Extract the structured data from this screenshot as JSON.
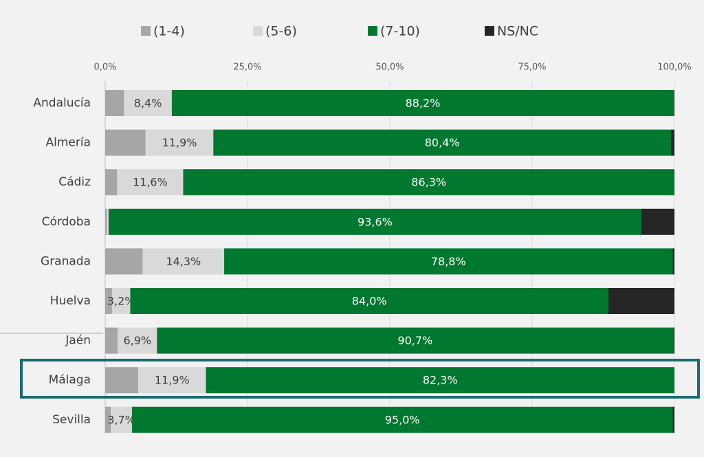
{
  "chart_data": {
    "type": "stacked-barh",
    "categories": [
      "Andalucía",
      "Almería",
      "Cádiz",
      "Córdoba",
      "Granada",
      "Huelva",
      "Jaén",
      "Málaga",
      "Sevilla"
    ],
    "series": [
      {
        "name": "(1-4)",
        "color": "#a6a6a6",
        "values": [
          3.3,
          7.1,
          2.1,
          0.3,
          6.6,
          1.2,
          2.2,
          5.8,
          1.0
        ]
      },
      {
        "name": "(5-6)",
        "color": "#d9d9d9",
        "values": [
          8.4,
          11.9,
          11.6,
          0.3,
          14.3,
          3.2,
          6.9,
          11.9,
          3.7
        ],
        "value_labels": [
          "8,4%",
          "11,9%",
          "11,6%",
          null,
          "14,3%",
          "3,2%",
          "6,9%",
          "11,9%",
          "3,7%"
        ]
      },
      {
        "name": "(7-10)",
        "color": "#00782f",
        "values": [
          88.2,
          80.4,
          86.3,
          93.6,
          78.8,
          84.0,
          90.7,
          82.3,
          95.0
        ],
        "value_labels": [
          "88,2%",
          "80,4%",
          "86,3%",
          "93,6%",
          "78,8%",
          "84,0%",
          "90,7%",
          "82,3%",
          "95,0%"
        ]
      },
      {
        "name": "NS/NC",
        "color": "#262626",
        "values": [
          0.1,
          0.6,
          0,
          5.8,
          0.3,
          11.6,
          0.2,
          0,
          0.3
        ]
      }
    ],
    "xlim": [
      0,
      100
    ],
    "xticks": [
      {
        "value": 0,
        "label": "0,0%"
      },
      {
        "value": 25,
        "label": "25,0%"
      },
      {
        "value": 50,
        "label": "50,0%"
      },
      {
        "value": 75,
        "label": "75,0%"
      },
      {
        "value": 100,
        "label": "100,0%"
      }
    ],
    "grid": true,
    "legend": "top"
  }
}
